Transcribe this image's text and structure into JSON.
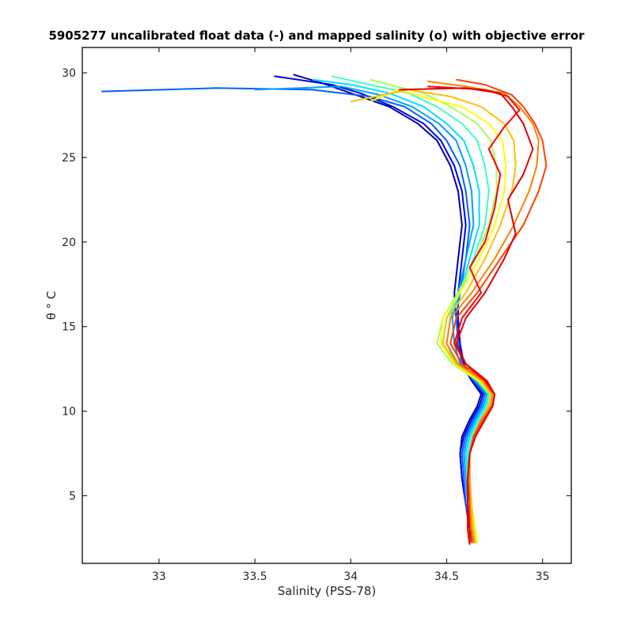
{
  "chart_data": {
    "type": "line",
    "title": "5905277 uncalibrated float data (-) and mapped salinity (o) with objective error",
    "xlabel": "Salinity (PSS-78)",
    "ylabel": "θ ° C",
    "xlim": [
      32.6,
      35.15
    ],
    "ylim": [
      1.0,
      31.5
    ],
    "xticks": [
      33,
      33.5,
      34,
      34.5,
      35
    ],
    "xtick_labels": [
      "33",
      "33.5",
      "34",
      "34.5",
      "35"
    ],
    "yticks": [
      5,
      10,
      15,
      20,
      25,
      30
    ],
    "ytick_labels": [
      "5",
      "10",
      "15",
      "20",
      "25",
      "30"
    ],
    "grid": false,
    "colormap": [
      "#00008f",
      "#0000ff",
      "#0080ff",
      "#00ffff",
      "#80ff80",
      "#ffff00",
      "#ff8000",
      "#ff0000",
      "#800000"
    ],
    "series_color_order": "profile number, early (blue) to late (red)",
    "series": [
      {
        "color": "#0000a0",
        "x": [
          34.64,
          34.62,
          34.6,
          34.58,
          34.57,
          34.58,
          34.62,
          34.66,
          34.68,
          34.63,
          34.58,
          34.57,
          34.55,
          34.54,
          34.56,
          34.58,
          34.56,
          34.52,
          34.45,
          34.35,
          34.2,
          34.0,
          33.85,
          33.7
        ],
        "y": [
          2.2,
          3,
          4.5,
          6,
          7.5,
          8.5,
          9.5,
          10.3,
          11,
          11.8,
          12.8,
          14,
          15.5,
          17,
          19,
          21,
          23,
          24.5,
          26,
          27,
          28,
          28.8,
          29.4,
          29.9
        ]
      },
      {
        "color": "#0000f0",
        "x": [
          34.64,
          34.62,
          34.6,
          34.58,
          34.57,
          34.59,
          34.63,
          34.67,
          34.69,
          34.64,
          34.59,
          34.57,
          34.56,
          34.56,
          34.58,
          34.6,
          34.58,
          34.54,
          34.47,
          34.38,
          34.22,
          34.05,
          33.9,
          33.6
        ],
        "y": [
          2.3,
          3,
          4.5,
          6,
          7.5,
          8.5,
          9.5,
          10.3,
          11,
          11.8,
          12.8,
          14,
          15.5,
          17,
          19,
          21,
          23,
          24.5,
          26,
          27,
          28,
          28.8,
          29.3,
          29.8
        ]
      },
      {
        "color": "#0060ff",
        "x": [
          34.65,
          34.63,
          34.6,
          34.59,
          34.58,
          34.6,
          34.64,
          34.68,
          34.7,
          34.64,
          34.58,
          34.56,
          34.55,
          34.57,
          34.6,
          34.62,
          34.6,
          34.57,
          34.5,
          34.42,
          34.28,
          34.1,
          33.8,
          33.3,
          32.7
        ],
        "y": [
          2.2,
          3,
          4.5,
          6,
          7.5,
          8.5,
          9.5,
          10.3,
          11,
          11.8,
          12.8,
          14,
          15.5,
          17,
          19,
          21,
          23,
          24.5,
          26,
          27,
          28,
          28.6,
          29.0,
          29.1,
          28.9
        ]
      },
      {
        "color": "#00a0ff",
        "x": [
          34.65,
          34.63,
          34.61,
          34.6,
          34.59,
          34.61,
          34.65,
          34.69,
          34.71,
          34.65,
          34.57,
          34.54,
          34.53,
          34.56,
          34.6,
          34.64,
          34.63,
          34.6,
          34.55,
          34.46,
          34.32,
          34.15,
          33.95,
          33.5
        ],
        "y": [
          2.2,
          3,
          4.5,
          6,
          7.5,
          8.5,
          9.5,
          10.3,
          11,
          11.8,
          12.8,
          14,
          15.5,
          17,
          19,
          21,
          23,
          24.5,
          26,
          27,
          28,
          28.7,
          29.2,
          29.0
        ]
      },
      {
        "color": "#00e0ff",
        "x": [
          34.66,
          34.64,
          34.62,
          34.61,
          34.6,
          34.62,
          34.66,
          34.7,
          34.72,
          34.66,
          34.55,
          34.5,
          34.52,
          34.57,
          34.62,
          34.67,
          34.67,
          34.64,
          34.59,
          34.5,
          34.38,
          34.2,
          34.0,
          33.8
        ],
        "y": [
          2.2,
          3,
          4.5,
          6,
          7.5,
          8.5,
          9.5,
          10.3,
          11,
          11.8,
          12.8,
          14,
          15.5,
          17,
          19,
          21,
          23,
          24.5,
          26,
          27,
          28,
          28.8,
          29.3,
          29.6
        ]
      },
      {
        "color": "#40ffc0",
        "x": [
          34.66,
          34.64,
          34.62,
          34.61,
          34.61,
          34.63,
          34.67,
          34.71,
          34.72,
          34.66,
          34.54,
          34.48,
          34.5,
          34.57,
          34.64,
          34.7,
          34.72,
          34.7,
          34.66,
          34.58,
          34.45,
          34.3,
          34.1,
          33.9
        ],
        "y": [
          2.2,
          3,
          4.5,
          6,
          7.5,
          8.5,
          9.5,
          10.3,
          11,
          11.8,
          12.8,
          14,
          15.5,
          17,
          19,
          21,
          23,
          24.5,
          26,
          27,
          28,
          28.8,
          29.3,
          29.8
        ]
      },
      {
        "color": "#a0ff60",
        "x": [
          34.66,
          34.64,
          34.63,
          34.62,
          34.62,
          34.64,
          34.68,
          34.72,
          34.73,
          34.66,
          34.53,
          34.45,
          34.48,
          34.56,
          34.65,
          34.72,
          34.76,
          34.76,
          34.73,
          34.66,
          34.52,
          34.38,
          34.2,
          34.1
        ],
        "y": [
          2.2,
          3,
          4.5,
          6,
          7.5,
          8.5,
          9.5,
          10.3,
          11,
          11.8,
          12.8,
          14,
          15.5,
          17,
          19,
          21,
          23,
          24.5,
          26,
          27,
          28,
          28.8,
          29.3,
          29.6
        ]
      },
      {
        "color": "#ffff00",
        "x": [
          34.66,
          34.65,
          34.63,
          34.62,
          34.62,
          34.64,
          34.68,
          34.72,
          34.73,
          34.67,
          34.54,
          34.47,
          34.48,
          34.57,
          34.67,
          34.75,
          34.8,
          34.81,
          34.79,
          34.72,
          34.58,
          34.4,
          34.25,
          34.1
        ],
        "y": [
          2.2,
          3,
          4.5,
          6,
          7.5,
          8.5,
          9.5,
          10.3,
          11,
          11.8,
          12.8,
          14,
          15.5,
          17,
          19,
          21,
          23,
          24.5,
          26,
          27,
          28,
          28.5,
          29.0,
          28.3
        ]
      },
      {
        "color": "#ffc000",
        "x": [
          34.65,
          34.64,
          34.63,
          34.62,
          34.62,
          34.64,
          34.68,
          34.72,
          34.73,
          34.68,
          34.55,
          34.48,
          34.5,
          34.6,
          34.7,
          34.78,
          34.84,
          34.86,
          34.85,
          34.8,
          34.68,
          34.52,
          34.3,
          34.0
        ],
        "y": [
          2.2,
          3,
          4.5,
          6,
          7.5,
          8.5,
          9.5,
          10.3,
          11,
          11.8,
          12.8,
          14,
          15.5,
          17,
          19,
          21,
          23,
          24.5,
          26,
          27,
          28,
          28.6,
          29.0,
          28.3
        ]
      },
      {
        "color": "#ff8000",
        "x": [
          34.64,
          34.63,
          34.62,
          34.62,
          34.62,
          34.64,
          34.68,
          34.73,
          34.74,
          34.69,
          34.56,
          34.5,
          34.52,
          34.63,
          34.75,
          34.85,
          34.93,
          34.97,
          34.98,
          34.95,
          34.88,
          34.8,
          34.6,
          34.4
        ],
        "y": [
          2.2,
          3,
          4.5,
          6,
          7.5,
          8.5,
          9.5,
          10.3,
          11,
          11.8,
          12.8,
          14,
          15.5,
          17,
          19,
          21,
          23,
          24.5,
          26,
          27,
          28,
          28.8,
          29.2,
          29.5
        ]
      },
      {
        "color": "#ff4000",
        "x": [
          34.63,
          34.62,
          34.62,
          34.61,
          34.62,
          34.64,
          34.69,
          34.74,
          34.75,
          34.7,
          34.58,
          34.52,
          34.55,
          34.66,
          34.78,
          34.9,
          34.98,
          35.02,
          35.0,
          34.96,
          34.9,
          34.84,
          34.7,
          34.55
        ],
        "y": [
          2.2,
          3,
          4.5,
          6,
          7.5,
          8.5,
          9.5,
          10.3,
          11,
          11.8,
          12.8,
          14,
          15.5,
          17,
          19,
          21,
          23,
          24.5,
          26,
          27,
          28,
          28.7,
          29.3,
          29.6
        ]
      },
      {
        "color": "#ff0000",
        "x": [
          34.62,
          34.62,
          34.61,
          34.61,
          34.62,
          34.65,
          34.7,
          34.74,
          34.75,
          34.71,
          34.6,
          34.54,
          34.58,
          34.68,
          34.62,
          34.7,
          34.75,
          34.78,
          34.72,
          34.8,
          34.88,
          34.82,
          34.7,
          34.4
        ],
        "y": [
          2.2,
          3,
          4.5,
          6,
          7.5,
          8.5,
          9.5,
          10.3,
          11,
          11.8,
          12.8,
          14,
          15.5,
          17,
          18.5,
          20,
          22,
          24,
          25.5,
          26.8,
          27.8,
          28.6,
          29.0,
          29.2
        ]
      },
      {
        "color": "#e00000",
        "x": [
          34.62,
          34.61,
          34.61,
          34.61,
          34.62,
          34.65,
          34.7,
          34.74,
          34.75,
          34.7,
          34.6,
          34.55,
          34.6,
          34.7,
          34.8,
          34.86,
          34.82,
          34.9,
          34.95,
          34.9,
          34.84,
          34.78,
          34.6,
          34.25
        ],
        "y": [
          2.1,
          3,
          4.5,
          6,
          7.5,
          8.5,
          9.5,
          10.3,
          11,
          11.8,
          12.8,
          14,
          15.5,
          17,
          19,
          20.5,
          22.5,
          24,
          25.5,
          27,
          28,
          28.8,
          29.1,
          29.0
        ]
      }
    ]
  }
}
